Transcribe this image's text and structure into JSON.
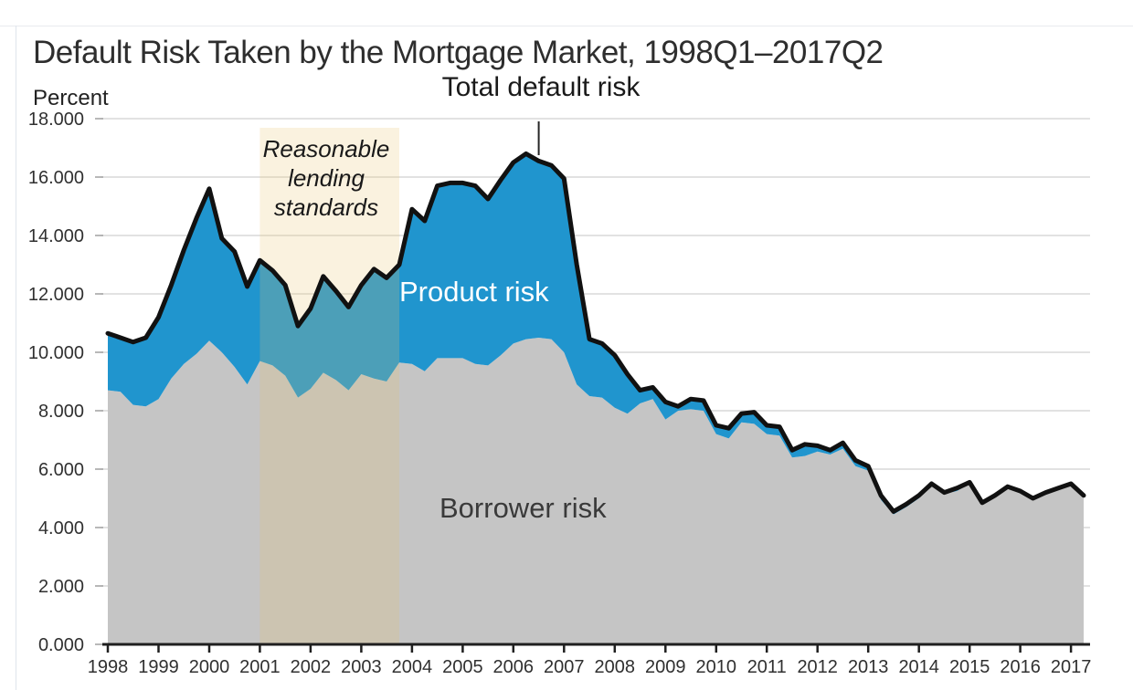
{
  "title": "Default Risk Taken by the Mortgage Market, 1998Q1–2017Q2",
  "axis_unit_label": "Percent",
  "annotations": {
    "total_label": "Total default risk",
    "shade_label_lines": [
      "Reasonable",
      "lending",
      "standards"
    ],
    "product_label": "Product risk",
    "borrower_label": "Borrower risk"
  },
  "colors": {
    "product_blue": "#2095CE",
    "borrower_gray": "#C5C5C5",
    "total_line_black": "#111111",
    "shade_overlay": "rgba(231,198,108,0.22)",
    "gridline": "#D9D9D9",
    "axis": "#1f1f1f",
    "tick_label": "#303030",
    "minor_tick": "#a0a0a0",
    "pointer_line": "#262626"
  },
  "chart_data": {
    "type": "area",
    "stacked": true,
    "title": "Default Risk Taken by the Mortgage Market, 1998Q1–2017Q2",
    "xlabel": "",
    "ylabel": "Percent",
    "ylim": [
      0,
      18
    ],
    "y_tick_step": 2,
    "grid": "horizontal",
    "legend_position": "labels-inside-plot",
    "y_tick_labels": [
      "0.000",
      "2.000",
      "4.000",
      "6.000",
      "8.000",
      "10.000",
      "12.000",
      "14.000",
      "16.000",
      "18.000"
    ],
    "x_tick_labels": [
      "1998",
      "1999",
      "2000",
      "2001",
      "2002",
      "2003",
      "2004",
      "2005",
      "2006",
      "2007",
      "2008",
      "2009",
      "2010",
      "2011",
      "2012",
      "2013",
      "2014",
      "2015",
      "2016",
      "2017"
    ],
    "quarters": [
      "1998Q1",
      "1998Q2",
      "1998Q3",
      "1998Q4",
      "1999Q1",
      "1999Q2",
      "1999Q3",
      "1999Q4",
      "2000Q1",
      "2000Q2",
      "2000Q3",
      "2000Q4",
      "2001Q1",
      "2001Q2",
      "2001Q3",
      "2001Q4",
      "2002Q1",
      "2002Q2",
      "2002Q3",
      "2002Q4",
      "2003Q1",
      "2003Q2",
      "2003Q3",
      "2003Q4",
      "2004Q1",
      "2004Q2",
      "2004Q3",
      "2004Q4",
      "2005Q1",
      "2005Q2",
      "2005Q3",
      "2005Q4",
      "2006Q1",
      "2006Q2",
      "2006Q3",
      "2006Q4",
      "2007Q1",
      "2007Q2",
      "2007Q3",
      "2007Q4",
      "2008Q1",
      "2008Q2",
      "2008Q3",
      "2008Q4",
      "2009Q1",
      "2009Q2",
      "2009Q3",
      "2009Q4",
      "2010Q1",
      "2010Q2",
      "2010Q3",
      "2010Q4",
      "2011Q1",
      "2011Q2",
      "2011Q3",
      "2011Q4",
      "2012Q1",
      "2012Q2",
      "2012Q3",
      "2012Q4",
      "2013Q1",
      "2013Q2",
      "2013Q3",
      "2013Q4",
      "2014Q1",
      "2014Q2",
      "2014Q3",
      "2014Q4",
      "2015Q1",
      "2015Q2",
      "2015Q3",
      "2015Q4",
      "2016Q1",
      "2016Q2",
      "2016Q3",
      "2016Q4",
      "2017Q1",
      "2017Q2"
    ],
    "series": [
      {
        "name": "Total default risk",
        "values": [
          10.65,
          10.5,
          10.35,
          10.5,
          11.2,
          12.3,
          13.5,
          14.6,
          15.6,
          13.9,
          13.45,
          12.25,
          13.15,
          12.8,
          12.3,
          10.9,
          11.5,
          12.6,
          12.1,
          11.55,
          12.3,
          12.85,
          12.55,
          13.0,
          14.9,
          14.5,
          15.7,
          15.8,
          15.8,
          15.7,
          15.25,
          15.9,
          16.5,
          16.8,
          16.55,
          16.4,
          15.95,
          13.0,
          10.45,
          10.3,
          9.9,
          9.25,
          8.7,
          8.8,
          8.3,
          8.15,
          8.4,
          8.35,
          7.5,
          7.4,
          7.9,
          7.95,
          7.5,
          7.45,
          6.65,
          6.85,
          6.8,
          6.65,
          6.9,
          6.3,
          6.1,
          5.1,
          4.55,
          4.8,
          5.1,
          5.5,
          5.2,
          5.35,
          5.55,
          4.85,
          5.1,
          5.4,
          5.25,
          5.0,
          5.2,
          5.35,
          5.5,
          5.1
        ]
      },
      {
        "name": "Product risk",
        "values": [
          1.95,
          1.85,
          2.15,
          2.35,
          2.8,
          3.2,
          3.9,
          4.65,
          5.2,
          3.9,
          3.95,
          3.35,
          3.45,
          3.25,
          3.1,
          2.45,
          2.75,
          3.3,
          3.05,
          2.85,
          3.05,
          3.75,
          3.55,
          3.35,
          5.3,
          5.15,
          5.9,
          6.0,
          6.0,
          6.1,
          5.7,
          6.0,
          6.2,
          6.35,
          6.05,
          5.95,
          5.95,
          4.1,
          1.95,
          1.85,
          1.8,
          1.35,
          0.45,
          0.4,
          0.6,
          0.15,
          0.35,
          0.35,
          0.3,
          0.35,
          0.3,
          0.4,
          0.3,
          0.3,
          0.25,
          0.4,
          0.2,
          0.15,
          0.2,
          0.2,
          0.15,
          0.15,
          0.1,
          0.1,
          0.1,
          0.05,
          0.05,
          0.1,
          0.05,
          0.05,
          0.05,
          0.05,
          0.05,
          0.05,
          0.05,
          0.05,
          0.05,
          0.05
        ]
      },
      {
        "name": "Borrower risk",
        "values": [
          8.7,
          8.65,
          8.2,
          8.15,
          8.4,
          9.1,
          9.6,
          9.95,
          10.4,
          10.0,
          9.5,
          8.9,
          9.7,
          9.55,
          9.2,
          8.45,
          8.75,
          9.3,
          9.05,
          8.7,
          9.25,
          9.1,
          9.0,
          9.65,
          9.6,
          9.35,
          9.8,
          9.8,
          9.8,
          9.6,
          9.55,
          9.9,
          10.3,
          10.45,
          10.5,
          10.45,
          10.0,
          8.9,
          8.5,
          8.45,
          8.1,
          7.9,
          8.25,
          8.4,
          7.7,
          8.0,
          8.05,
          8.0,
          7.2,
          7.05,
          7.6,
          7.55,
          7.2,
          7.15,
          6.4,
          6.45,
          6.6,
          6.5,
          6.7,
          6.1,
          5.95,
          4.95,
          4.45,
          4.7,
          5.0,
          5.45,
          5.15,
          5.25,
          5.5,
          4.8,
          5.05,
          5.35,
          5.2,
          4.95,
          5.15,
          5.3,
          5.45,
          5.05
        ]
      }
    ],
    "shaded_region": {
      "label": "Reasonable lending standards",
      "start": "2001Q1",
      "end": "2003Q4"
    },
    "pointer": {
      "label": "Total default risk",
      "points_to_quarter": "2006Q3"
    }
  }
}
